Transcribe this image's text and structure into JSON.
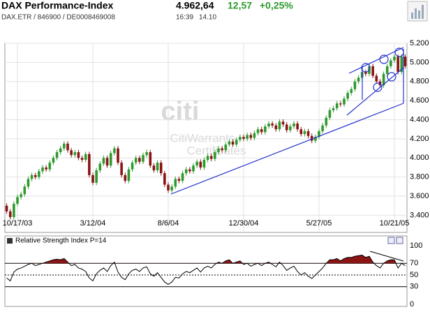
{
  "header": {
    "title": "DAX Performance-Index",
    "last": "4.962,64",
    "change": "12,57",
    "change_pct": "+0,25%",
    "symbol": "DAX.ETR  /  846900  /  DE0008469008",
    "time": "16:39",
    "date": "14.10"
  },
  "watermark": {
    "brand": "citi",
    "line1": "CitiWarrants",
    "line2": "Certificates"
  },
  "chart_data": [
    {
      "type": "candlestick",
      "up_color": "#2e9a2e",
      "down_color": "#8b1414",
      "grid": true,
      "categories": [
        null,
        null,
        null,
        "10/17/03",
        null,
        null,
        null,
        null,
        null,
        null,
        null,
        null,
        null,
        null,
        null,
        null,
        null,
        null,
        null,
        null,
        null,
        null,
        null,
        null,
        "3/12/04",
        null,
        null,
        null,
        null,
        null,
        null,
        null,
        null,
        null,
        null,
        null,
        null,
        null,
        null,
        null,
        null,
        null,
        null,
        null,
        null,
        "8/6/04",
        null,
        null,
        null,
        null,
        null,
        null,
        null,
        null,
        null,
        null,
        null,
        null,
        null,
        null,
        null,
        null,
        null,
        null,
        null,
        null,
        "12/30/04",
        null,
        null,
        null,
        null,
        null,
        null,
        null,
        null,
        null,
        null,
        null,
        null,
        null,
        null,
        null,
        null,
        null,
        null,
        null,
        null,
        "5/27/05",
        null,
        null,
        null,
        null,
        null,
        null,
        null,
        null,
        null,
        null,
        null,
        null,
        null,
        null,
        null,
        null,
        null,
        null,
        null,
        null,
        "10/21/05",
        null,
        null,
        null
      ],
      "open": [
        3500,
        3440,
        3380,
        3520,
        3590,
        3620,
        3700,
        3780,
        3820,
        3800,
        3860,
        3900,
        3880,
        3950,
        4000,
        4060,
        4100,
        4150,
        4080,
        4030,
        4060,
        4000,
        3980,
        4040,
        3820,
        3740,
        3870,
        3940,
        4000,
        3920,
        4050,
        4100,
        3950,
        3820,
        3760,
        3880,
        3950,
        4000,
        3960,
        4030,
        4060,
        3920,
        3870,
        3950,
        3840,
        3720,
        3660,
        3700,
        3780,
        3760,
        3840,
        3880,
        3860,
        3920,
        3960,
        3900,
        3980,
        4020,
        3990,
        4060,
        4100,
        4080,
        4140,
        4170,
        4140,
        4190,
        4220,
        4200,
        4240,
        4210,
        4260,
        4300,
        4270,
        4330,
        4360,
        4340,
        4300,
        4380,
        4350,
        4290,
        4330,
        4360,
        4300,
        4250,
        4280,
        4230,
        4180,
        4220,
        4280,
        4340,
        4420,
        4500,
        4520,
        4570,
        4560,
        4620,
        4680,
        4720,
        4800,
        4840,
        4900,
        4880,
        4960,
        4860,
        4800,
        4760,
        4880,
        4960,
        5020,
        5060,
        4900,
        5060
      ],
      "high": [
        3525,
        3465,
        3545,
        3615,
        3645,
        3725,
        3805,
        3845,
        3845,
        3885,
        3925,
        3925,
        3975,
        4025,
        4085,
        4125,
        4175,
        4175,
        4105,
        4085,
        4085,
        4025,
        4065,
        4065,
        3845,
        3895,
        3965,
        4025,
        4025,
        4075,
        4125,
        4125,
        3975,
        3845,
        3905,
        3975,
        4025,
        4025,
        4055,
        4085,
        4085,
        3945,
        3975,
        3975,
        3865,
        3745,
        3725,
        3805,
        3805,
        3865,
        3905,
        3905,
        3945,
        3985,
        3985,
        4005,
        4045,
        4045,
        4085,
        4125,
        4125,
        4165,
        4195,
        4195,
        4215,
        4245,
        4245,
        4265,
        4265,
        4285,
        4325,
        4325,
        4355,
        4385,
        4385,
        4365,
        4405,
        4405,
        4375,
        4355,
        4385,
        4385,
        4325,
        4305,
        4305,
        4255,
        4245,
        4305,
        4365,
        4445,
        4525,
        4545,
        4595,
        4595,
        4645,
        4705,
        4745,
        4825,
        4865,
        4925,
        4925,
        4985,
        4985,
        4885,
        4825,
        4905,
        4985,
        5045,
        5085,
        5085,
        5085,
        5085
      ],
      "low": [
        3415,
        3355,
        3355,
        3495,
        3565,
        3595,
        3675,
        3755,
        3775,
        3775,
        3835,
        3855,
        3855,
        3925,
        3975,
        4035,
        4075,
        4055,
        4005,
        4005,
        3975,
        3955,
        3955,
        3795,
        3715,
        3715,
        3845,
        3915,
        3895,
        3895,
        4025,
        3925,
        3795,
        3735,
        3735,
        3855,
        3925,
        3935,
        3935,
        4005,
        3895,
        3845,
        3845,
        3815,
        3695,
        3635,
        3635,
        3675,
        3735,
        3735,
        3815,
        3835,
        3835,
        3895,
        3875,
        3875,
        3955,
        3965,
        3965,
        4035,
        4055,
        4055,
        4115,
        4115,
        4115,
        4165,
        4175,
        4175,
        4185,
        4185,
        4235,
        4245,
        4245,
        4305,
        4315,
        4275,
        4275,
        4325,
        4265,
        4265,
        4305,
        4275,
        4225,
        4225,
        4205,
        4155,
        4155,
        4195,
        4255,
        4315,
        4395,
        4475,
        4495,
        4535,
        4535,
        4595,
        4655,
        4695,
        4775,
        4815,
        4855,
        4855,
        4835,
        4775,
        4735,
        4735,
        4855,
        4935,
        4995,
        4875,
        4875,
        4935
      ],
      "close": [
        3440,
        3380,
        3520,
        3590,
        3620,
        3700,
        3780,
        3820,
        3800,
        3860,
        3900,
        3880,
        3950,
        4000,
        4060,
        4100,
        4150,
        4080,
        4030,
        4060,
        4000,
        3980,
        4040,
        3820,
        3740,
        3870,
        3940,
        4000,
        3920,
        4050,
        4100,
        3950,
        3820,
        3760,
        3880,
        3950,
        4000,
        3960,
        4030,
        4060,
        3920,
        3870,
        3950,
        3840,
        3720,
        3660,
        3700,
        3780,
        3760,
        3840,
        3880,
        3860,
        3920,
        3960,
        3900,
        3980,
        4020,
        3990,
        4060,
        4100,
        4080,
        4140,
        4170,
        4140,
        4190,
        4220,
        4200,
        4240,
        4210,
        4260,
        4300,
        4270,
        4330,
        4360,
        4340,
        4300,
        4380,
        4350,
        4290,
        4330,
        4360,
        4300,
        4250,
        4280,
        4230,
        4180,
        4220,
        4280,
        4340,
        4420,
        4500,
        4520,
        4570,
        4560,
        4620,
        4680,
        4720,
        4800,
        4840,
        4900,
        4880,
        4960,
        4860,
        4800,
        4760,
        4880,
        4960,
        5020,
        5060,
        4900,
        5060,
        4960
      ],
      "ylim": [
        3220,
        5200
      ],
      "yticks": [
        {
          "value": 3400,
          "label": "3.400"
        },
        {
          "value": 3600,
          "label": "3.600"
        },
        {
          "value": 3800,
          "label": "3.800"
        },
        {
          "value": 4000,
          "label": "4.000"
        },
        {
          "value": 4200,
          "label": "4.200"
        },
        {
          "value": 4400,
          "label": "4.400"
        },
        {
          "value": 4600,
          "label": "4.600"
        },
        {
          "value": 4800,
          "label": "4.800"
        },
        {
          "value": 5000,
          "label": "5.000"
        },
        {
          "value": 5200,
          "label": "5.200"
        }
      ]
    },
    {
      "type": "line",
      "title": "Relative Strength Index P=14",
      "color": "#000000",
      "fill_color": "#8b1414",
      "threshold": 70,
      "values": [
        45,
        40,
        55,
        60,
        62,
        65,
        68,
        70,
        66,
        68,
        70,
        72,
        74,
        76,
        77,
        76,
        78,
        72,
        66,
        68,
        62,
        60,
        56,
        45,
        40,
        52,
        58,
        62,
        56,
        66,
        72,
        55,
        46,
        42,
        52,
        58,
        60,
        56,
        62,
        64,
        52,
        48,
        54,
        46,
        38,
        34,
        38,
        46,
        45,
        52,
        56,
        54,
        58,
        62,
        55,
        62,
        65,
        62,
        68,
        72,
        70,
        74,
        76,
        70,
        72,
        74,
        68,
        70,
        65,
        68,
        70,
        66,
        70,
        72,
        68,
        64,
        72,
        66,
        58,
        62,
        65,
        56,
        50,
        54,
        48,
        44,
        50,
        56,
        62,
        70,
        76,
        76,
        78,
        74,
        78,
        80,
        80,
        82,
        83,
        84,
        80,
        82,
        72,
        66,
        62,
        70,
        74,
        76,
        76,
        62,
        70,
        66
      ],
      "ylim": [
        0,
        100
      ],
      "yticks": [
        0,
        30,
        50,
        70,
        100
      ]
    }
  ]
}
